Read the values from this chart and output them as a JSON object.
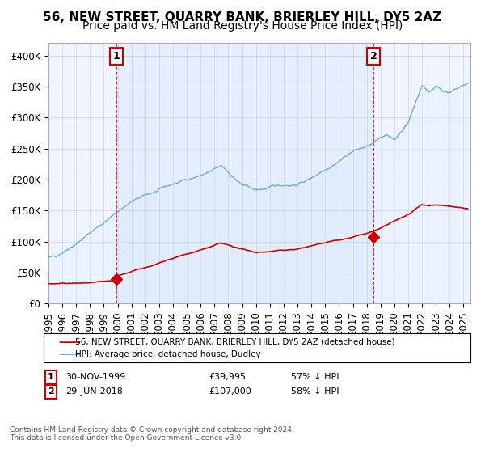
{
  "title": "56, NEW STREET, QUARRY BANK, BRIERLEY HILL, DY5 2AZ",
  "subtitle": "Price paid vs. HM Land Registry's House Price Index (HPI)",
  "xlabel": "",
  "ylabel": "",
  "ylim": [
    0,
    420000
  ],
  "yticks": [
    0,
    50000,
    100000,
    150000,
    200000,
    250000,
    300000,
    350000,
    400000
  ],
  "ytick_labels": [
    "£0",
    "£50K",
    "£100K",
    "£150K",
    "£200K",
    "£250K",
    "£300K",
    "£350K",
    "£400K"
  ],
  "hpi_color": "#6baed6",
  "hpi_fill_color": "#ddeeff",
  "price_color": "#cc0000",
  "marker_color": "#cc0000",
  "vline_color": "#cc0000",
  "annotation_box_color": "#cc0000",
  "grid_color": "#cccccc",
  "bg_color": "#ffffff",
  "plot_bg_color": "#f0f4ff",
  "legend_label_price": "56, NEW STREET, QUARRY BANK, BRIERLEY HILL, DY5 2AZ (detached house)",
  "legend_label_hpi": "HPI: Average price, detached house, Dudley",
  "sale1_date": "30-NOV-1999",
  "sale1_price": 39995,
  "sale1_label": "1",
  "sale1_x": 1999.917,
  "sale2_date": "29-JUN-2018",
  "sale2_price": 107000,
  "sale2_label": "2",
  "sale2_x": 2018.5,
  "footnote": "Contains HM Land Registry data © Crown copyright and database right 2024.\nThis data is licensed under the Open Government Licence v3.0.",
  "title_fontsize": 11,
  "subtitle_fontsize": 10,
  "tick_fontsize": 8.5
}
